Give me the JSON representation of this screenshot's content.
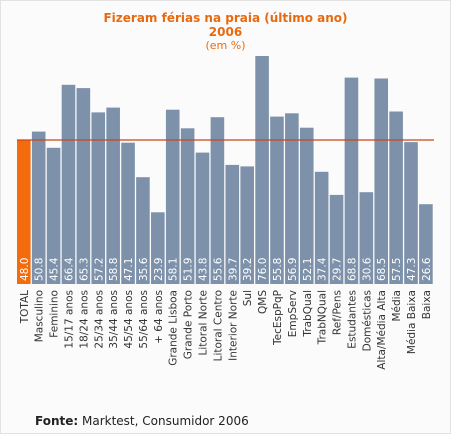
{
  "chart_data": {
    "type": "bar",
    "title": "Fizeram férias na praia (último ano)",
    "subtitle": "2006",
    "units": "(em %)",
    "ylim": [
      0,
      80
    ],
    "reference_line": 48.0,
    "categories": [
      "TOTAL",
      "Masculino",
      "Feminino",
      "15/17 anos",
      "18/24 anos",
      "25/34 anos",
      "35/44 anos",
      "45/54 anos",
      "55/64 anos",
      "+ 64 anos",
      "Grande Lisboa",
      "Grande Porto",
      "Litoral Norte",
      "Litoral Centro",
      "Interior Norte",
      "Sul",
      "QMS",
      "TecEspPqP",
      "EmpServ",
      "TrabQual",
      "TrabNQual",
      "Ref/Pens",
      "Estudantes",
      "Domésticas",
      "Alta/Média Alta",
      "Média",
      "Média Baixa",
      "Baixa"
    ],
    "values": [
      48.0,
      50.8,
      45.4,
      66.4,
      65.3,
      57.2,
      58.8,
      47.1,
      35.6,
      23.9,
      58.1,
      51.9,
      43.8,
      55.6,
      39.7,
      39.2,
      76.0,
      55.8,
      56.9,
      52.1,
      37.4,
      29.7,
      68.8,
      30.6,
      68.5,
      57.5,
      47.3,
      26.6
    ],
    "value_labels": [
      "48.0",
      "50.8",
      "45.4",
      "66.4",
      "65.3",
      "57.2",
      "58.8",
      "47.1",
      "35.6",
      "23.9",
      "58.1",
      "51.9",
      "43.8",
      "55.6",
      "39.7",
      "39.2",
      "76.0",
      "55.8",
      "56.9",
      "52.1",
      "37.4",
      "29.7",
      "68.8",
      "30.6",
      "68.5",
      "57.5",
      "47.3",
      "26.6"
    ],
    "highlight_index": 0,
    "colors": {
      "bar": "#7d91aa",
      "highlight": "#f26c0d",
      "reference_line": "#c8461a",
      "bar_label": "#ffffff",
      "category_label": "#333333"
    }
  },
  "source": {
    "label": "Fonte:",
    "text": "Marktest, Consumidor 2006"
  }
}
